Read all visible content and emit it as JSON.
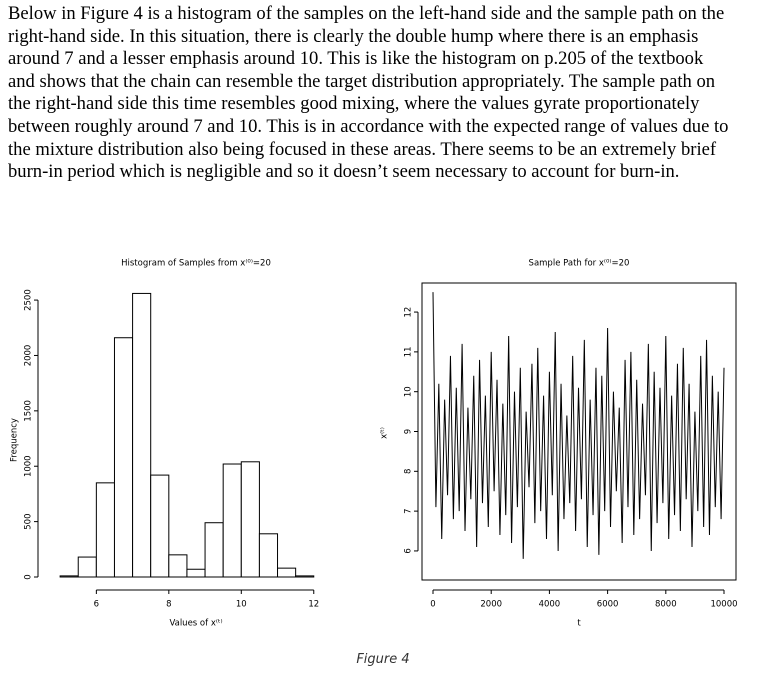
{
  "paragraph": [
    "Below in Figure 4 is a histogram of the samples on the left-hand side and the sample path on the",
    "right-hand side. In this situation, there is clearly the double hump where there is an emphasis",
    "around 7 and a lesser emphasis around 10. This is like the histogram on p.205 of the textbook",
    "and shows that the chain can resemble the target distribution appropriately. The sample path on",
    "the right-hand side this time resembles good mixing, where the values gyrate proportionately",
    "between roughly around 7 and 10. This is in accordance with the expected range of values due to",
    "the mixture distribution also being focused in these areas. There seems to be an extremely brief",
    "burn-in period which is negligible and so it doesn’t seem necessary to account for burn-in."
  ],
  "chart_data": [
    {
      "type": "histogram",
      "title": "Histogram of Samples from x⁽⁰⁾=20",
      "x_label": "Values of x⁽ᵗ⁾",
      "y_label": "Frequency",
      "bins": [
        5,
        5.5,
        6,
        6.5,
        7,
        7.5,
        8,
        8.5,
        9,
        9.5,
        10,
        10.5,
        11,
        11.5,
        12
      ],
      "counts": [
        10,
        180,
        850,
        2160,
        2560,
        920,
        200,
        70,
        490,
        1020,
        1040,
        390,
        80,
        10
      ],
      "color": "#ffffff",
      "edge_color": "#000000",
      "xlim": [
        4.5,
        13
      ],
      "xticks": [
        6,
        8,
        10,
        12
      ],
      "ylim": [
        0,
        2600
      ],
      "yticks": [
        0,
        500,
        1000,
        1500,
        2000,
        2500
      ]
    },
    {
      "type": "line",
      "title": "Sample Path for x⁽⁰⁾=20",
      "x_label": "t",
      "y_label": "x⁽ᵗ⁾",
      "color": "#000000",
      "x": [
        0,
        100,
        200,
        300,
        400,
        500,
        600,
        700,
        800,
        900,
        1000,
        1100,
        1200,
        1300,
        1400,
        1500,
        1600,
        1700,
        1800,
        1900,
        2000,
        2100,
        2200,
        2300,
        2400,
        2500,
        2600,
        2700,
        2800,
        2900,
        3000,
        3100,
        3200,
        3300,
        3400,
        3500,
        3600,
        3700,
        3800,
        3900,
        4000,
        4100,
        4200,
        4300,
        4400,
        4500,
        4600,
        4700,
        4800,
        4900,
        5000,
        5100,
        5200,
        5300,
        5400,
        5500,
        5600,
        5700,
        5800,
        5900,
        6000,
        6100,
        6200,
        6300,
        6400,
        6500,
        6600,
        6700,
        6800,
        6900,
        7000,
        7100,
        7200,
        7300,
        7400,
        7500,
        7600,
        7700,
        7800,
        7900,
        8000,
        8100,
        8200,
        8300,
        8400,
        8500,
        8600,
        8700,
        8800,
        8900,
        9000,
        9100,
        9200,
        9300,
        9400,
        9500,
        9600,
        9700,
        9800,
        9900,
        10000
      ],
      "values": [
        12.5,
        7.1,
        10.2,
        6.3,
        9.8,
        7.4,
        10.9,
        6.8,
        10.1,
        7.0,
        11.2,
        6.5,
        9.6,
        7.3,
        10.4,
        6.1,
        10.8,
        7.2,
        9.9,
        6.6,
        11.0,
        7.5,
        10.3,
        6.4,
        9.7,
        6.9,
        11.4,
        6.2,
        10.0,
        7.1,
        10.6,
        5.8,
        9.5,
        7.6,
        10.7,
        6.7,
        11.1,
        7.0,
        9.9,
        6.3,
        10.5,
        7.4,
        11.5,
        6.0,
        10.2,
        6.8,
        9.4,
        7.2,
        10.9,
        6.5,
        10.1,
        7.3,
        11.3,
        6.1,
        9.8,
        6.9,
        10.6,
        5.9,
        10.4,
        7.0,
        11.6,
        6.6,
        10.0,
        7.5,
        9.6,
        6.2,
        10.8,
        7.1,
        11.0,
        6.4,
        10.3,
        6.8,
        9.7,
        7.4,
        11.2,
        6.0,
        10.5,
        6.7,
        10.1,
        7.2,
        11.4,
        6.3,
        9.9,
        6.9,
        10.7,
        6.5,
        11.1,
        7.3,
        10.2,
        6.1,
        9.5,
        7.0,
        10.9,
        6.6,
        11.3,
        6.4,
        10.4,
        7.1,
        10.0,
        6.8,
        10.6
      ],
      "xlim": [
        -378,
        10412
      ],
      "xticks": [
        0,
        2000,
        4000,
        6000,
        8000,
        10000
      ],
      "ylim": [
        5.27,
        12.73
      ],
      "yticks": [
        6,
        7,
        8,
        9,
        10,
        11,
        12
      ],
      "frame": true
    }
  ],
  "caption": "Figure 4"
}
